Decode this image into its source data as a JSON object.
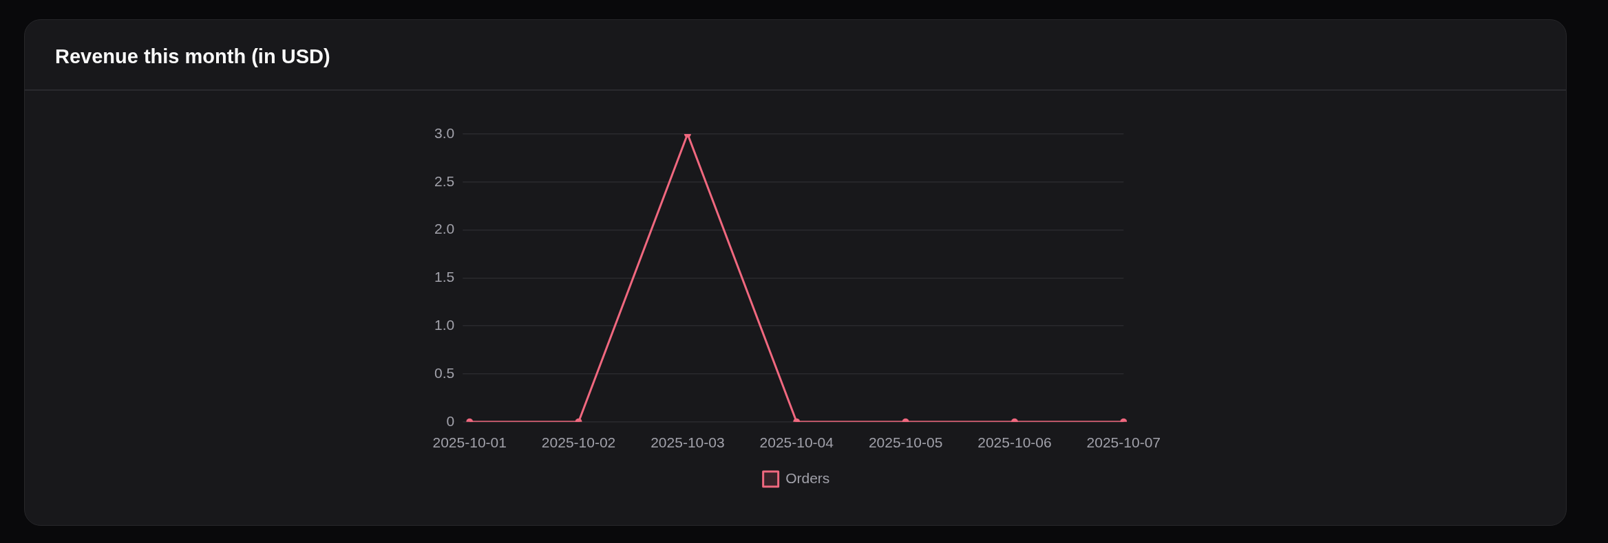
{
  "chart_data": {
    "type": "line",
    "title": "Revenue this month (in USD)",
    "categories": [
      "2025-10-01",
      "2025-10-02",
      "2025-10-03",
      "2025-10-04",
      "2025-10-05",
      "2025-10-06",
      "2025-10-07"
    ],
    "series": [
      {
        "name": "Orders",
        "color": "#f0687f",
        "values": [
          0,
          0,
          3,
          0,
          0,
          0,
          0
        ]
      }
    ],
    "ylim": [
      0,
      3
    ],
    "yticks": [
      0,
      0.5,
      {
        "value": 1,
        "label": "1.0"
      },
      1.5,
      {
        "value": 2,
        "label": "2.0"
      },
      2.5,
      {
        "value": 3,
        "label": "3.0"
      }
    ],
    "grid": "y",
    "legend": "bottom",
    "marker": "circle"
  }
}
